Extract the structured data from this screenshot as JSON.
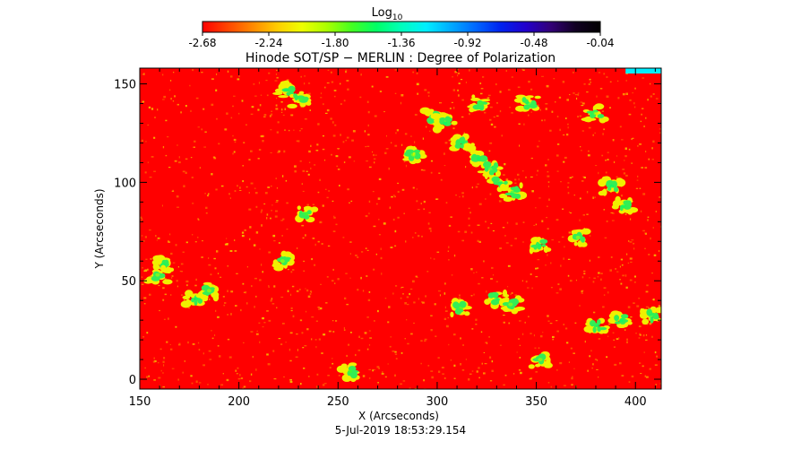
{
  "chart_data": {
    "type": "heatmap",
    "title": "Hinode SOT/SP − MERLIN : Degree of Polarization",
    "xlabel": "X (Arcseconds)",
    "ylabel": "Y (Arcseconds)",
    "timestamp": "5-Jul-2019 18:53:29.154",
    "colorbar": {
      "label_main": "Log",
      "label_sub": "10",
      "range": [
        -2.68,
        -0.04
      ],
      "ticks": [
        "-2.68",
        "-2.24",
        "-1.80",
        "-1.36",
        "-0.92",
        "-0.48",
        "-0.04"
      ],
      "colors": [
        "#ff0000",
        "#ff4400",
        "#ff8800",
        "#ffcc00",
        "#eeff00",
        "#aaff00",
        "#44ff22",
        "#00ff66",
        "#00ffbb",
        "#00eeff",
        "#00aaff",
        "#0066ff",
        "#0022ee",
        "#2200cc",
        "#330077",
        "#110022",
        "#000000"
      ]
    },
    "xlim": [
      150,
      413
    ],
    "ylim": [
      -5,
      158
    ],
    "xticks": [
      "150",
      "200",
      "250",
      "300",
      "350",
      "400"
    ],
    "yticks": [
      "0",
      "50",
      "100",
      "150"
    ],
    "background_value": -2.68,
    "features": [
      {
        "x": 224,
        "y": 147,
        "value": -1.6
      },
      {
        "x": 231,
        "y": 142,
        "value": -1.7
      },
      {
        "x": 234,
        "y": 84,
        "value": -1.7
      },
      {
        "x": 222,
        "y": 60,
        "value": -1.9
      },
      {
        "x": 162,
        "y": 58,
        "value": -1.6
      },
      {
        "x": 159,
        "y": 53,
        "value": -1.9
      },
      {
        "x": 178,
        "y": 41,
        "value": -1.6
      },
      {
        "x": 185,
        "y": 45,
        "value": -1.9
      },
      {
        "x": 256,
        "y": 4,
        "value": -1.7
      },
      {
        "x": 298,
        "y": 133,
        "value": -1.5
      },
      {
        "x": 304,
        "y": 130,
        "value": -1.6
      },
      {
        "x": 313,
        "y": 120,
        "value": -1.5
      },
      {
        "x": 321,
        "y": 112,
        "value": -1.5
      },
      {
        "x": 327,
        "y": 107,
        "value": -1.6
      },
      {
        "x": 332,
        "y": 100,
        "value": -1.5
      },
      {
        "x": 338,
        "y": 95,
        "value": -1.6
      },
      {
        "x": 322,
        "y": 140,
        "value": -1.7
      },
      {
        "x": 346,
        "y": 140,
        "value": -1.6
      },
      {
        "x": 352,
        "y": 68,
        "value": -1.5
      },
      {
        "x": 330,
        "y": 41,
        "value": -1.6
      },
      {
        "x": 337,
        "y": 38,
        "value": -1.8
      },
      {
        "x": 312,
        "y": 36,
        "value": -1.7
      },
      {
        "x": 388,
        "y": 98,
        "value": -1.5
      },
      {
        "x": 394,
        "y": 88,
        "value": -1.6
      },
      {
        "x": 371,
        "y": 72,
        "value": -1.8
      },
      {
        "x": 393,
        "y": 30,
        "value": -1.6
      },
      {
        "x": 381,
        "y": 27,
        "value": -1.6
      },
      {
        "x": 408,
        "y": 32,
        "value": -1.5
      },
      {
        "x": 352,
        "y": 10,
        "value": -1.8
      },
      {
        "x": 288,
        "y": 114,
        "value": -1.9
      },
      {
        "x": 380,
        "y": 135,
        "value": -1.9
      }
    ],
    "top_right_edge_value": -1.2
  }
}
